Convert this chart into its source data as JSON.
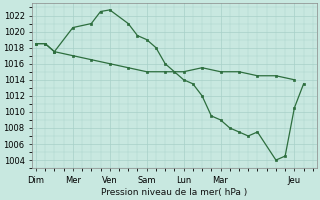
{
  "background_color": "#c8e8e0",
  "grid_color": "#a8d0c8",
  "line_color": "#2d6e3e",
  "x_tick_labels": [
    "Dim",
    "Mer",
    "Ven",
    "Sam",
    "Lun",
    "Mar",
    "Jeu"
  ],
  "x_tick_positions": [
    0,
    2,
    4,
    6,
    8,
    10,
    14
  ],
  "xlim": [
    -0.2,
    15.2
  ],
  "ylim": [
    1003.0,
    1023.5
  ],
  "yticks": [
    1004,
    1006,
    1008,
    1010,
    1012,
    1014,
    1016,
    1018,
    1020,
    1022
  ],
  "xlabel": "Pression niveau de la mer( hPa )",
  "line1_x": [
    0,
    0.5,
    1.0,
    2.0,
    3.0,
    3.5,
    4.0,
    5.0,
    5.5,
    6.0,
    6.5,
    7.0,
    7.5,
    8.0,
    8.5,
    9.0,
    9.5,
    10.0,
    10.5,
    11.0,
    11.5,
    12.0,
    13.0,
    13.5,
    14.0,
    14.5
  ],
  "line1_y": [
    1018.5,
    1018.5,
    1017.5,
    1020.5,
    1021.0,
    1022.5,
    1022.7,
    1021.0,
    1019.5,
    1019.0,
    1018.0,
    1016.0,
    1015.0,
    1014.0,
    1013.5,
    1012.0,
    1009.5,
    1009.0,
    1008.0,
    1007.5,
    1007.0,
    1007.5,
    1004.0,
    1004.5,
    1010.5,
    1013.5
  ],
  "line2_x": [
    0,
    0.5,
    1.0,
    2.0,
    3.0,
    4.0,
    5.0,
    6.0,
    7.0,
    8.0,
    9.0,
    10.0,
    11.0,
    12.0,
    13.0,
    14.0
  ],
  "line2_y": [
    1018.5,
    1018.5,
    1017.5,
    1017.0,
    1016.5,
    1016.0,
    1015.5,
    1015.0,
    1015.0,
    1015.0,
    1015.5,
    1015.0,
    1015.0,
    1014.5,
    1014.5,
    1014.0
  ]
}
